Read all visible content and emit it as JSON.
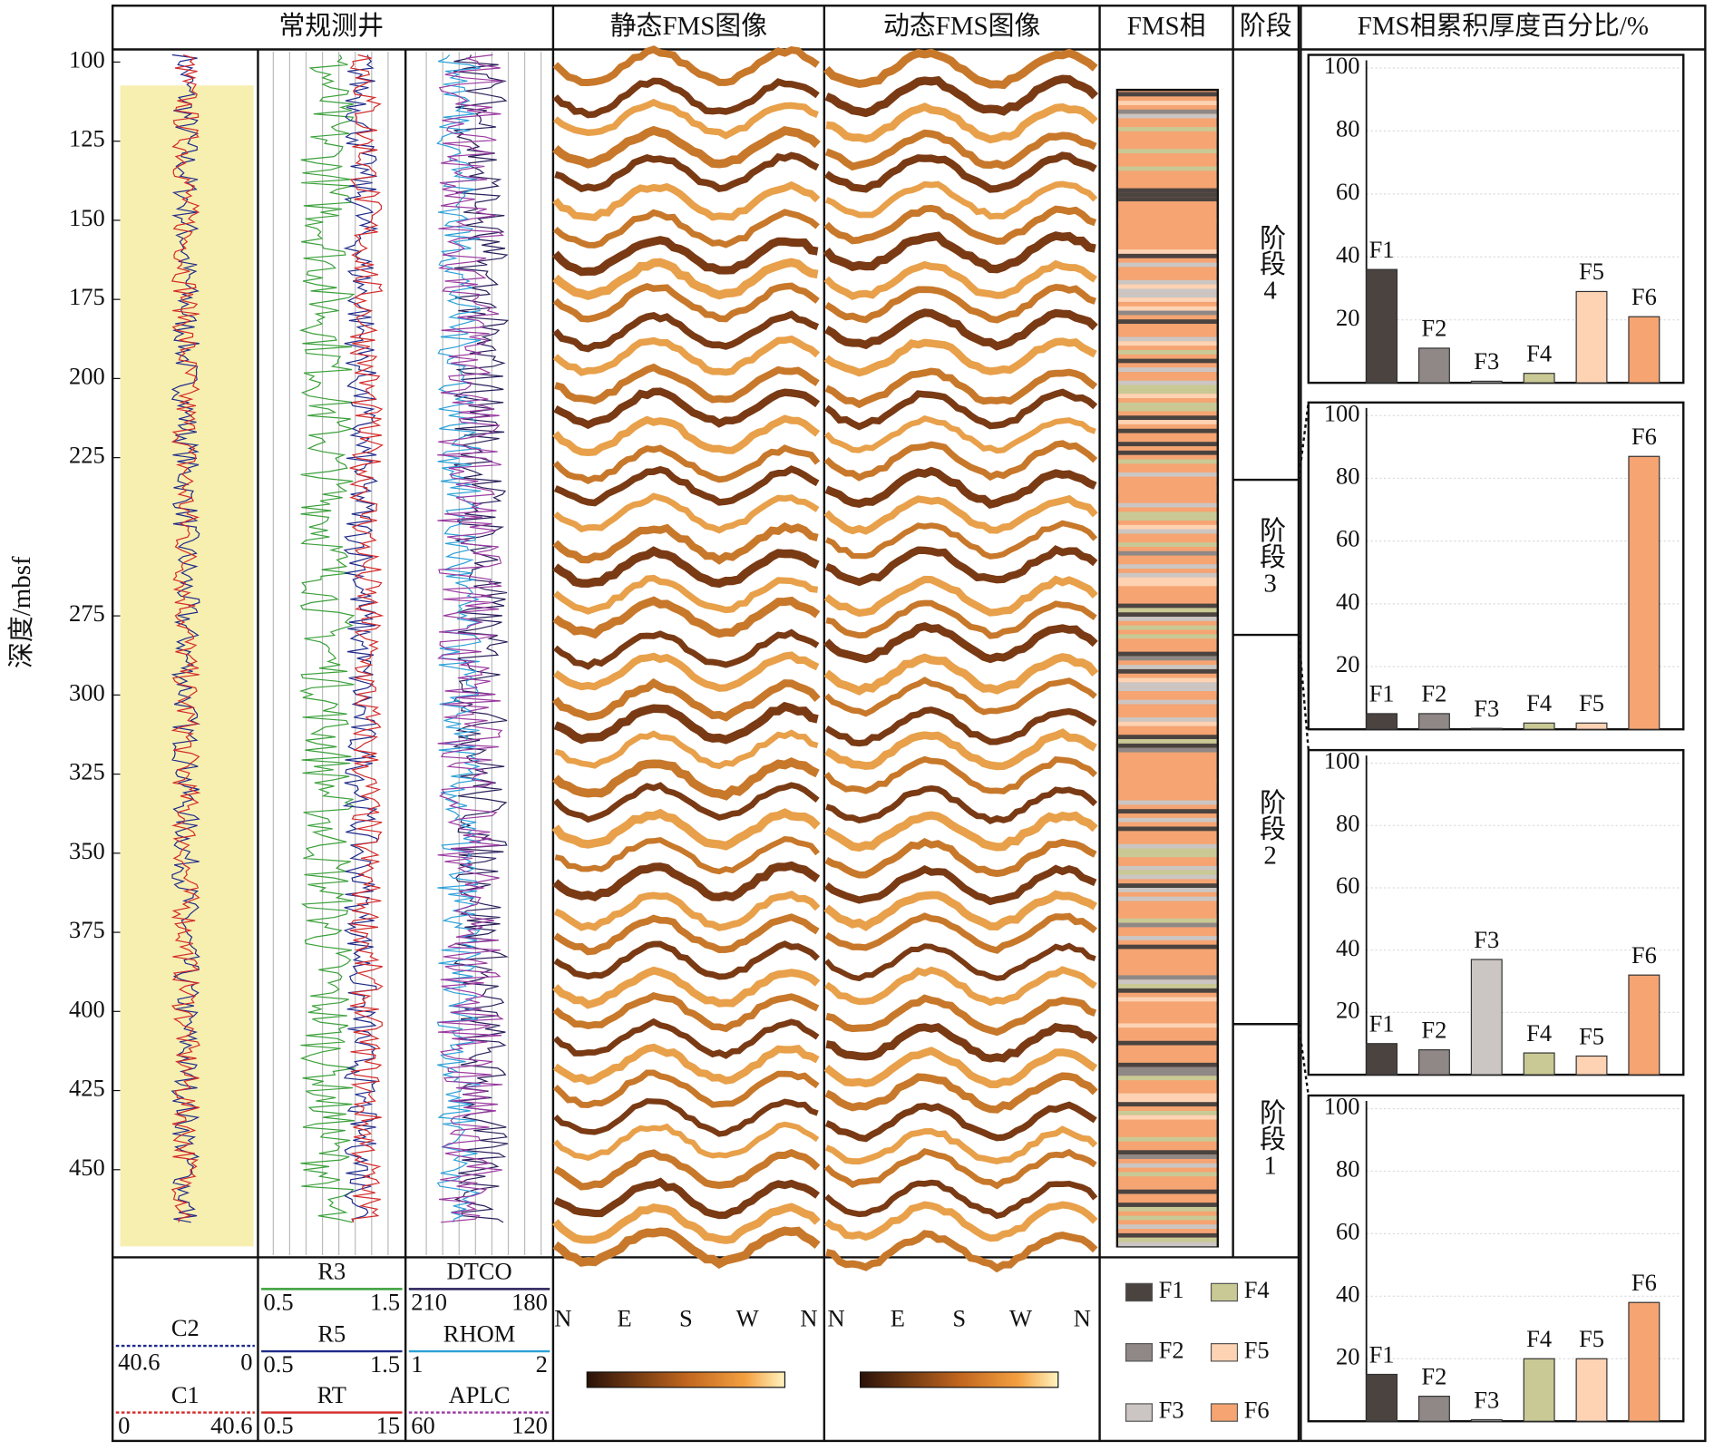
{
  "header": [
    "常规测井",
    "静态FMS图像",
    "动态FMS图像",
    "FMS相",
    "阶段",
    "FMS相累积厚度百分比/%"
  ],
  "chart_data": [
    {
      "type": "well-log",
      "ylabel": "深度/mbsf",
      "ylim": [
        96,
        477
      ],
      "yticks": [
        100,
        125,
        150,
        175,
        200,
        225,
        275,
        300,
        325,
        350,
        375,
        400,
        425,
        450
      ],
      "tracks": [
        {
          "name": "C2",
          "color": "#1f2a8a",
          "range": [
            40.6,
            0
          ],
          "column": 0
        },
        {
          "name": "C1",
          "color": "#d42a2a",
          "range": [
            0,
            40.6
          ],
          "column": 0
        },
        {
          "name": "R3",
          "color": "#3aa03a",
          "range": [
            0.5,
            1.5
          ],
          "column": 1
        },
        {
          "name": "R5",
          "color": "#1f2a8a",
          "range": [
            0.5,
            1.5
          ],
          "column": 1
        },
        {
          "name": "RT",
          "color": "#d42a2a",
          "range": [
            0.5,
            15
          ],
          "column": 1
        },
        {
          "name": "DTCO",
          "color": "#2a1f5a",
          "range": [
            210,
            180
          ],
          "column": 2
        },
        {
          "name": "RHOM",
          "color": "#2aa0d8",
          "range": [
            1,
            2
          ],
          "column": 2
        },
        {
          "name": "APLC",
          "color": "#9a3aa0",
          "range": [
            60,
            120
          ],
          "column": 2
        }
      ],
      "azimuths": [
        "N",
        "E",
        "S",
        "W",
        "N"
      ],
      "stages": [
        "阶段4",
        "阶段3",
        "阶段2",
        "阶段1"
      ],
      "stage_bounds": [
        232,
        281,
        404
      ],
      "facies": [
        "F1",
        "F2",
        "F3",
        "F4",
        "F5",
        "F6"
      ],
      "facies_colors": [
        "#4a4340",
        "#8f8886",
        "#cbc6c3",
        "#c9c995",
        "#fdd3b4",
        "#f5a472"
      ]
    },
    {
      "type": "bar",
      "categories": [
        "F1",
        "F2",
        "F3",
        "F4",
        "F5",
        "F6"
      ],
      "values": [
        36,
        11,
        0.5,
        3,
        29,
        21
      ],
      "ylim": [
        0,
        100
      ],
      "yticks": [
        20,
        40,
        60,
        80,
        100
      ],
      "grid": true
    },
    {
      "type": "bar",
      "categories": [
        "F1",
        "F2",
        "F3",
        "F4",
        "F5",
        "F6"
      ],
      "values": [
        5,
        5,
        0.3,
        2,
        2,
        87
      ],
      "ylim": [
        0,
        100
      ],
      "yticks": [
        20,
        40,
        60,
        80,
        100
      ],
      "grid": true
    },
    {
      "type": "bar",
      "categories": [
        "F1",
        "F2",
        "F3",
        "F4",
        "F5",
        "F6"
      ],
      "values": [
        10,
        8,
        37,
        7,
        6,
        32
      ],
      "ylim": [
        0,
        100
      ],
      "yticks": [
        20,
        40,
        60,
        80,
        100
      ],
      "grid": true
    },
    {
      "type": "bar",
      "categories": [
        "F1",
        "F2",
        "F3",
        "F4",
        "F5",
        "F6"
      ],
      "values": [
        15,
        8,
        0.5,
        20,
        20,
        38
      ],
      "ylim": [
        0,
        100
      ],
      "yticks": [
        20,
        40,
        60,
        80,
        100
      ],
      "grid": true
    }
  ]
}
